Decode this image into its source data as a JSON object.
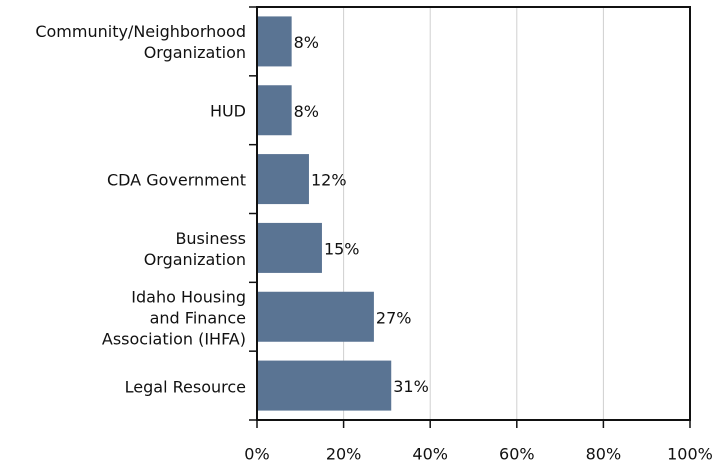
{
  "chart_data": {
    "type": "bar",
    "orientation": "horizontal",
    "categories": [
      "Community/Neighborhood\nOrganization",
      "HUD",
      "CDA Government",
      "Business\nOrganization",
      "Idaho Housing\nand Finance\nAssociation (IHFA)",
      "Legal Resource"
    ],
    "values": [
      8,
      8,
      12,
      15,
      27,
      31
    ],
    "value_labels": [
      "8%",
      "8%",
      "12%",
      "15%",
      "27%",
      "31%"
    ],
    "color": "#5a7493",
    "xlim": [
      0,
      100
    ],
    "xticks": [
      {
        "value": 0,
        "label": "0%"
      },
      {
        "value": 20,
        "label": "20%"
      },
      {
        "value": 40,
        "label": "40%"
      },
      {
        "value": 60,
        "label": "60%"
      },
      {
        "value": 80,
        "label": "80%"
      },
      {
        "value": 100,
        "label": "100%"
      }
    ],
    "grid": true
  }
}
